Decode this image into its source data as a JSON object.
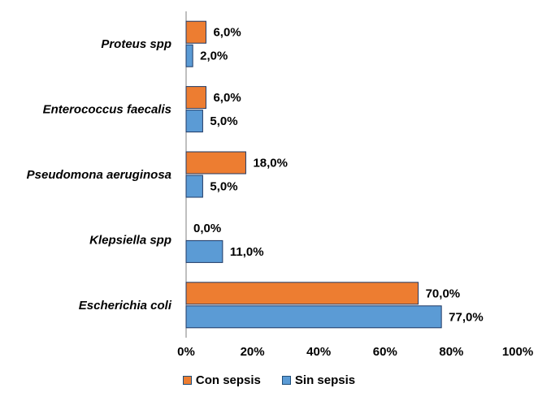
{
  "chart_data": {
    "type": "bar",
    "orientation": "horizontal",
    "categories": [
      "Escherichia coli",
      "Klepsiella spp",
      "Pseudomona aeruginosa",
      "Enterococcus faecalis",
      "Proteus spp"
    ],
    "series": [
      {
        "name": "Con sepsis",
        "color": "#ED7D31",
        "values": [
          70,
          0,
          18,
          6,
          6
        ],
        "labels": [
          "70,0%",
          "0,0%",
          "18,0%",
          "6,0%",
          "6,0%"
        ]
      },
      {
        "name": "Sin sepsis",
        "color": "#5B9BD5",
        "values": [
          77,
          11,
          5,
          5,
          2
        ],
        "labels": [
          "77,0%",
          "11,0%",
          "5,0%",
          "5,0%",
          "2,0%"
        ]
      }
    ],
    "xlim": [
      0,
      100
    ],
    "xticks": [
      0,
      20,
      40,
      60,
      80,
      100
    ],
    "xtick_labels": [
      "0%",
      "20%",
      "40%",
      "60%",
      "80%",
      "100%"
    ],
    "grid": false,
    "legend_position": "bottom"
  }
}
